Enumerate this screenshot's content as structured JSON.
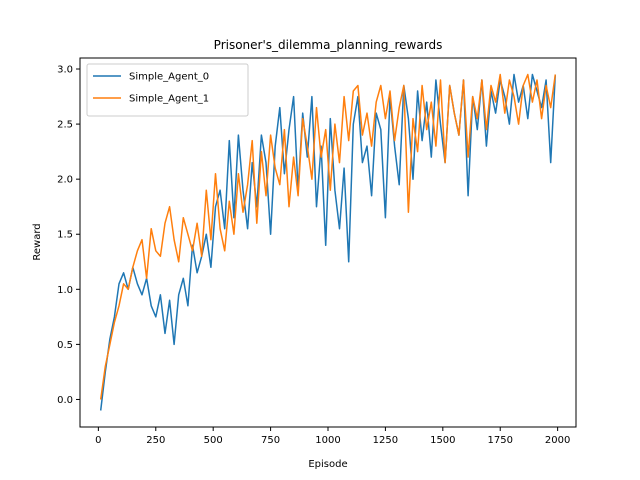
{
  "chart_data": {
    "type": "line",
    "title": "Prisoner's_dilemma_planning_rewards",
    "xlabel": "Episode",
    "ylabel": "Reward",
    "xlim": [
      -80,
      2080
    ],
    "ylim": [
      -0.25,
      3.1
    ],
    "xticks": [
      0,
      250,
      500,
      750,
      1000,
      1250,
      1500,
      1750,
      2000
    ],
    "yticks": [
      0.0,
      0.5,
      1.0,
      1.5,
      2.0,
      2.5,
      3.0
    ],
    "xtick_labels": [
      "0",
      "250",
      "500",
      "750",
      "1000",
      "1250",
      "1500",
      "1750",
      "2000"
    ],
    "ytick_labels": [
      "0.0",
      "0.5",
      "1.0",
      "1.5",
      "2.0",
      "2.5",
      "3.0"
    ],
    "legend_position": "upper-left",
    "grid": false,
    "series": [
      {
        "name": "Simple_Agent_0",
        "color": "#1f77b4",
        "x": [
          10,
          30,
          50,
          70,
          90,
          110,
          130,
          150,
          170,
          190,
          210,
          230,
          250,
          270,
          290,
          310,
          330,
          350,
          370,
          390,
          410,
          430,
          450,
          470,
          490,
          510,
          530,
          550,
          570,
          590,
          610,
          630,
          650,
          670,
          690,
          710,
          730,
          750,
          770,
          790,
          810,
          830,
          850,
          870,
          890,
          910,
          930,
          950,
          970,
          990,
          1010,
          1030,
          1050,
          1070,
          1090,
          1110,
          1130,
          1150,
          1170,
          1190,
          1210,
          1230,
          1250,
          1270,
          1290,
          1310,
          1330,
          1350,
          1370,
          1390,
          1410,
          1430,
          1450,
          1470,
          1490,
          1510,
          1530,
          1550,
          1570,
          1590,
          1610,
          1630,
          1650,
          1670,
          1690,
          1710,
          1730,
          1750,
          1770,
          1790,
          1810,
          1830,
          1850,
          1870,
          1890,
          1910,
          1930,
          1950,
          1970,
          1990
        ],
        "y": [
          -0.1,
          0.25,
          0.55,
          0.75,
          1.05,
          1.15,
          1.0,
          1.2,
          1.05,
          0.95,
          1.1,
          0.85,
          0.75,
          0.95,
          0.6,
          0.9,
          0.5,
          0.95,
          1.1,
          0.85,
          1.4,
          1.15,
          1.3,
          1.5,
          1.2,
          1.75,
          1.9,
          1.55,
          2.35,
          1.65,
          2.4,
          1.9,
          1.55,
          2.15,
          1.75,
          2.4,
          2.15,
          1.5,
          2.3,
          2.65,
          2.05,
          2.45,
          2.75,
          1.9,
          2.6,
          2.2,
          2.75,
          1.75,
          2.3,
          1.4,
          2.55,
          1.9,
          1.55,
          2.1,
          1.25,
          2.5,
          2.75,
          2.15,
          2.3,
          1.85,
          2.6,
          2.45,
          1.65,
          2.75,
          2.3,
          1.95,
          2.85,
          2.55,
          2.0,
          2.8,
          2.35,
          2.7,
          2.2,
          2.9,
          2.5,
          2.15,
          2.85,
          2.6,
          2.4,
          2.9,
          1.85,
          2.75,
          2.45,
          2.9,
          2.3,
          2.8,
          2.6,
          2.9,
          2.75,
          2.5,
          2.95,
          2.7,
          2.85,
          2.55,
          2.95,
          2.8,
          2.65,
          2.9,
          2.15,
          2.95
        ]
      },
      {
        "name": "Simple_Agent_1",
        "color": "#ff7f0e",
        "x": [
          10,
          30,
          50,
          70,
          90,
          110,
          130,
          150,
          170,
          190,
          210,
          230,
          250,
          270,
          290,
          310,
          330,
          350,
          370,
          390,
          410,
          430,
          450,
          470,
          490,
          510,
          530,
          550,
          570,
          590,
          610,
          630,
          650,
          670,
          690,
          710,
          730,
          750,
          770,
          790,
          810,
          830,
          850,
          870,
          890,
          910,
          930,
          950,
          970,
          990,
          1010,
          1030,
          1050,
          1070,
          1090,
          1110,
          1130,
          1150,
          1170,
          1190,
          1210,
          1230,
          1250,
          1270,
          1290,
          1310,
          1330,
          1350,
          1370,
          1390,
          1410,
          1430,
          1450,
          1470,
          1490,
          1510,
          1530,
          1550,
          1570,
          1590,
          1610,
          1630,
          1650,
          1670,
          1690,
          1710,
          1730,
          1750,
          1770,
          1790,
          1810,
          1830,
          1850,
          1870,
          1890,
          1910,
          1930,
          1950,
          1970,
          1990
        ],
        "y": [
          0.0,
          0.3,
          0.5,
          0.7,
          0.85,
          1.05,
          1.0,
          1.2,
          1.35,
          1.45,
          1.1,
          1.55,
          1.35,
          1.3,
          1.6,
          1.75,
          1.45,
          1.25,
          1.65,
          1.5,
          1.35,
          1.6,
          1.3,
          1.9,
          1.45,
          2.05,
          1.55,
          1.35,
          1.8,
          1.5,
          2.05,
          1.7,
          1.95,
          2.35,
          1.6,
          2.25,
          1.85,
          2.4,
          2.1,
          1.95,
          2.45,
          1.75,
          2.2,
          1.85,
          2.55,
          2.3,
          2.0,
          2.65,
          2.2,
          2.45,
          1.9,
          2.5,
          2.15,
          2.75,
          2.35,
          2.8,
          2.85,
          2.4,
          2.6,
          2.3,
          2.7,
          2.85,
          2.55,
          2.8,
          2.35,
          2.65,
          2.85,
          1.7,
          2.55,
          2.25,
          2.85,
          2.45,
          2.7,
          2.3,
          2.9,
          2.15,
          2.85,
          2.6,
          2.4,
          2.9,
          2.2,
          2.75,
          2.55,
          2.9,
          2.45,
          2.85,
          2.7,
          2.95,
          2.6,
          2.9,
          2.75,
          2.5,
          2.85,
          2.95,
          2.7,
          2.9,
          2.55,
          2.85,
          2.65,
          2.95
        ]
      }
    ]
  }
}
